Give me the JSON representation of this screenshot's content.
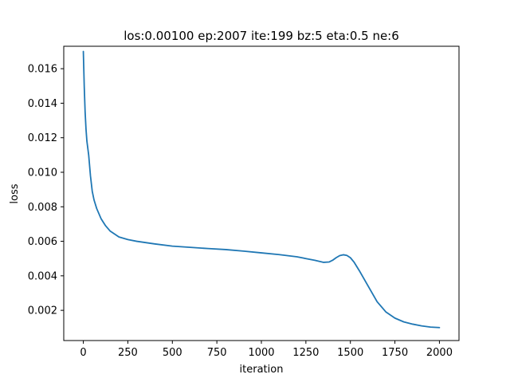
{
  "chart_data": {
    "type": "line",
    "title": "los:0.00100 ep:2007 ite:199 bz:5 eta:0.5 ne:6",
    "xlabel": "iteration",
    "ylabel": "loss",
    "xlim": [
      -110,
      2110
    ],
    "ylim": [
      0.00025,
      0.0173
    ],
    "xticks": [
      0,
      250,
      500,
      750,
      1000,
      1250,
      1500,
      1750,
      2000
    ],
    "xtick_labels": [
      "0",
      "250",
      "500",
      "750",
      "1000",
      "1250",
      "1500",
      "1750",
      "2000"
    ],
    "yticks": [
      0.002,
      0.004,
      0.006,
      0.008,
      0.01,
      0.012,
      0.014,
      0.016
    ],
    "ytick_labels": [
      "0.002",
      "0.004",
      "0.006",
      "0.008",
      "0.010",
      "0.012",
      "0.014",
      "0.016"
    ],
    "grid": false,
    "legend": "none",
    "series": [
      {
        "color": "#1f77b4",
        "x": [
          0,
          5,
          10,
          15,
          20,
          30,
          40,
          50,
          60,
          75,
          100,
          125,
          150,
          200,
          250,
          300,
          400,
          500,
          600,
          700,
          800,
          900,
          1000,
          1100,
          1200,
          1250,
          1300,
          1350,
          1380,
          1400,
          1420,
          1440,
          1460,
          1480,
          1500,
          1520,
          1550,
          1600,
          1650,
          1700,
          1750,
          1800,
          1850,
          1900,
          1950,
          2000
        ],
        "y": [
          0.017,
          0.015,
          0.0135,
          0.0125,
          0.0118,
          0.011,
          0.0098,
          0.0089,
          0.0084,
          0.0079,
          0.0073,
          0.0069,
          0.0066,
          0.00625,
          0.0061,
          0.006,
          0.00585,
          0.00572,
          0.00565,
          0.00558,
          0.00552,
          0.00543,
          0.00533,
          0.00523,
          0.0051,
          0.005,
          0.0049,
          0.00478,
          0.0048,
          0.0049,
          0.00505,
          0.00517,
          0.00522,
          0.00518,
          0.00505,
          0.0048,
          0.0043,
          0.0034,
          0.0025,
          0.0019,
          0.00155,
          0.00133,
          0.0012,
          0.0011,
          0.00103,
          0.001
        ]
      }
    ]
  }
}
